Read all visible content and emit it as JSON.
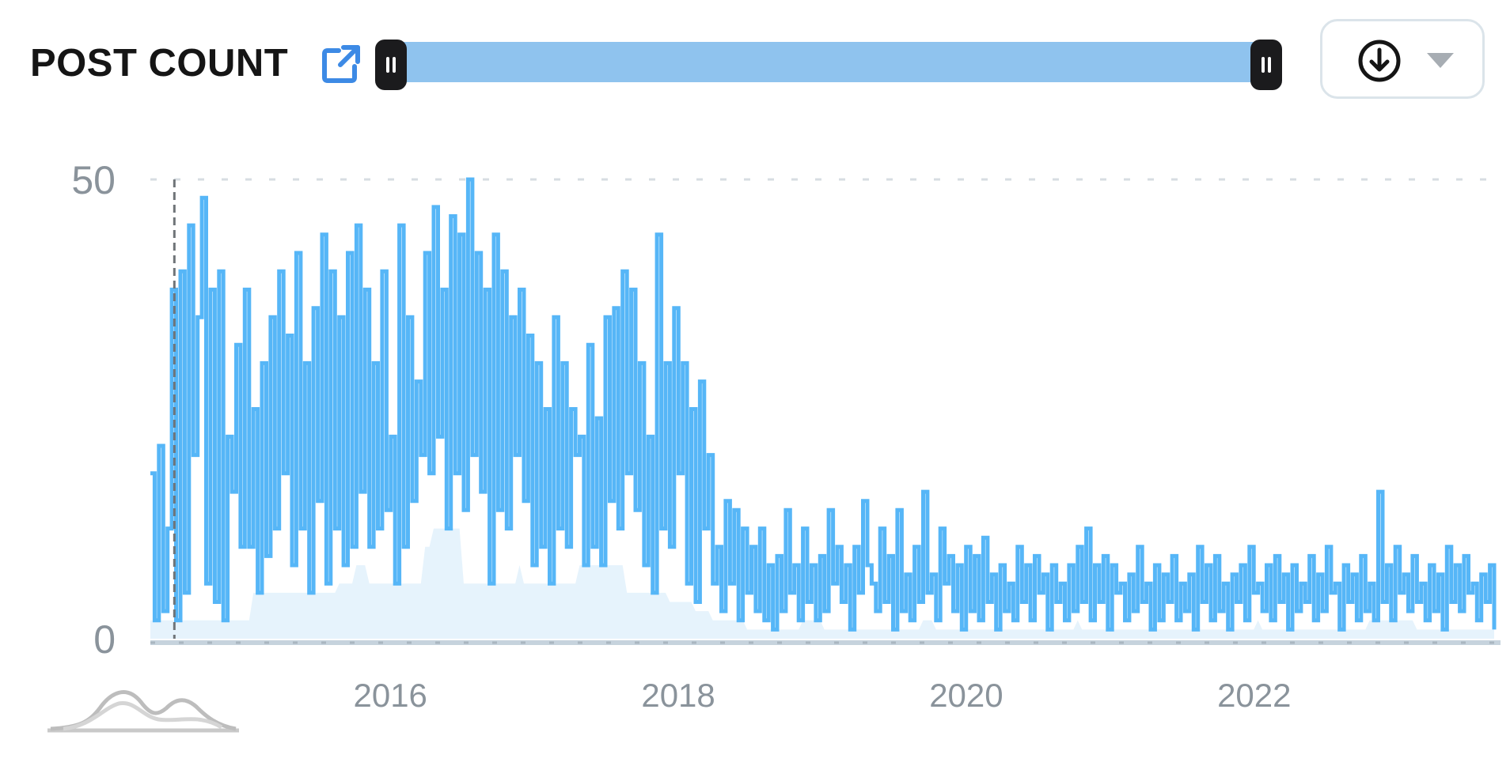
{
  "header": {
    "title": "POST COUNT",
    "external_link_icon": "external-link-icon",
    "download_icon": "download-circle-icon",
    "dropdown_icon": "caret-down-icon"
  },
  "colors": {
    "series_line": "#56b6f7",
    "series_fill": "#e6f3fc",
    "range_track": "#8fc3ee",
    "handle": "#1b1b1d",
    "axis_text": "#8a939b",
    "link_icon": "#3d8ae5"
  },
  "sparkline_icon": "sparkline-chart-icon",
  "chart_data": {
    "type": "line",
    "x_start": "2014-05",
    "x_end": "2023-09",
    "xlim": [
      "2014-05",
      "2023-09"
    ],
    "ylim": [
      0,
      50
    ],
    "y_ticks": [
      "0",
      "50"
    ],
    "x_ticks": [
      "2016",
      "2018",
      "2020",
      "2022"
    ],
    "grid": "horizontal dashed at top value",
    "cursor_line_x": "2014-07",
    "series": [
      {
        "values": [
          18,
          2,
          21,
          3,
          12,
          38,
          2,
          40,
          5,
          45,
          20,
          35,
          48,
          6,
          38,
          4,
          40,
          2,
          22,
          16,
          32,
          10,
          38,
          10,
          25,
          5,
          30,
          9,
          35,
          12,
          40,
          18,
          33,
          8,
          42,
          12,
          30,
          5,
          36,
          15,
          44,
          6,
          40,
          12,
          35,
          8,
          42,
          10,
          45,
          16,
          38,
          10,
          30,
          12,
          40,
          14,
          22,
          6,
          45,
          10,
          35,
          15,
          28,
          20,
          42,
          18,
          47,
          22,
          38,
          12,
          46,
          18,
          44,
          14,
          50,
          20,
          42,
          16,
          38,
          6,
          44,
          14,
          40,
          12,
          35,
          20,
          38,
          15,
          33,
          8,
          30,
          10,
          25,
          6,
          35,
          12,
          30,
          10,
          25,
          20,
          22,
          8,
          32,
          10,
          24,
          8,
          35,
          15,
          36,
          12,
          40,
          18,
          38,
          14,
          30,
          8,
          22,
          5,
          44,
          12,
          30,
          10,
          36,
          18,
          30,
          6,
          25,
          4,
          28,
          12,
          20,
          6,
          10,
          3,
          15,
          6,
          14,
          2,
          12,
          5,
          10,
          3,
          12,
          2,
          8,
          1,
          9,
          3,
          14,
          5,
          8,
          2,
          12,
          4,
          8,
          2,
          9,
          3,
          14,
          6,
          10,
          4,
          8,
          1,
          10,
          5,
          15,
          8,
          6,
          3,
          12,
          4,
          9,
          1,
          14,
          3,
          7,
          2,
          10,
          4,
          16,
          5,
          7,
          2,
          12,
          6,
          9,
          3,
          8,
          1,
          10,
          3,
          9,
          2,
          11,
          4,
          7,
          1,
          8,
          3,
          6,
          2,
          10,
          4,
          8,
          2,
          9,
          5,
          7,
          1,
          8,
          4,
          6,
          2,
          8,
          3,
          10,
          4,
          12,
          2,
          8,
          4,
          9,
          1,
          8,
          5,
          6,
          2,
          7,
          3,
          10,
          4,
          6,
          1,
          8,
          2,
          7,
          4,
          9,
          2,
          6,
          3,
          7,
          1,
          10,
          4,
          8,
          2,
          9,
          3,
          6,
          1,
          7,
          4,
          8,
          2,
          10,
          5,
          6,
          3,
          8,
          2,
          9,
          4,
          7,
          1,
          8,
          3,
          6,
          4,
          9,
          2,
          7,
          3,
          10,
          5,
          6,
          1,
          8,
          4,
          7,
          2,
          9,
          3,
          6,
          2,
          16,
          4,
          8,
          2,
          10,
          5,
          7,
          3,
          9,
          4,
          6,
          2,
          8,
          3,
          7,
          1,
          10,
          4,
          8,
          3,
          9,
          5,
          6,
          2,
          7,
          4,
          8,
          1
        ]
      }
    ]
  }
}
